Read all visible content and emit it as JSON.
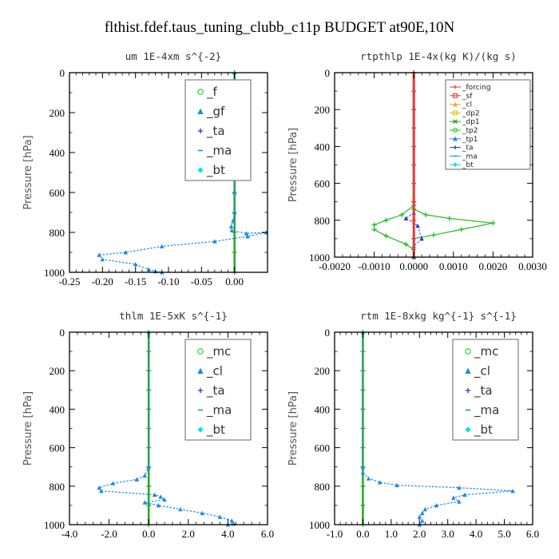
{
  "title": "flthist.fdef.taus_tuning_clubb_c11p  BUDGET at90E,10N",
  "chart_data": [
    {
      "type": "line",
      "title": "um  1E-4xm s^{-2}",
      "ylabel": "Pressure [hPa]",
      "xlim": [
        -0.25,
        0.05
      ],
      "ylim": [
        1000,
        0
      ],
      "xticks": [
        -0.25,
        -0.2,
        -0.15,
        -0.1,
        -0.05,
        0.0
      ],
      "xtick_labels": [
        "-0.25",
        "-0.20",
        "-0.15",
        "-0.10",
        "-0.05",
        "0.00"
      ],
      "yticks": [
        0,
        200,
        400,
        600,
        800,
        1000
      ],
      "legend_style": "large",
      "legend": [
        {
          "label": "_f",
          "color": "#22cc22",
          "marker": "circle"
        },
        {
          "label": "_gf",
          "color": "#1e88e5",
          "marker": "triangle"
        },
        {
          "label": "_ta",
          "color": "#1e3ccf",
          "marker": "plus"
        },
        {
          "label": "_ma",
          "color": "#1e90ff",
          "marker": "dash"
        },
        {
          "label": "_bt",
          "color": "#00e5e5",
          "marker": "diamond"
        }
      ],
      "series": [
        {
          "color": "#22aa22",
          "dashed": false,
          "width": 2.5,
          "points": [
            [
              0.0,
              0
            ],
            [
              0.0,
              100
            ],
            [
              0.0,
              200
            ],
            [
              0.0,
              300
            ],
            [
              0.0,
              400
            ],
            [
              0.0,
              500
            ],
            [
              0.0,
              600
            ],
            [
              0.0,
              700
            ],
            [
              0.0,
              800
            ],
            [
              0.0,
              900
            ],
            [
              0.0,
              1000
            ]
          ]
        },
        {
          "color": "#1e88e5",
          "dashed": true,
          "width": 1.2,
          "points": [
            [
              0.0,
              0
            ],
            [
              0.0,
              60
            ],
            [
              0.001,
              80
            ],
            [
              0.006,
              100
            ],
            [
              0.013,
              110
            ],
            [
              0.018,
              125
            ],
            [
              0.014,
              140
            ],
            [
              0.005,
              155
            ],
            [
              -0.004,
              170
            ],
            [
              -0.006,
              190
            ],
            [
              -0.004,
              210
            ],
            [
              -0.001,
              230
            ],
            [
              0.0,
              260
            ],
            [
              0.0,
              400
            ],
            [
              0.0,
              600
            ],
            [
              0.0,
              700
            ],
            [
              -0.002,
              740
            ],
            [
              -0.005,
              770
            ],
            [
              -0.004,
              790
            ],
            [
              0.018,
              805
            ],
            [
              0.048,
              800
            ],
            [
              0.02,
              820
            ],
            [
              -0.03,
              845
            ],
            [
              -0.11,
              870
            ],
            [
              -0.165,
              900
            ],
            [
              -0.205,
              913
            ],
            [
              -0.2,
              935
            ],
            [
              -0.15,
              960
            ],
            [
              -0.13,
              985
            ],
            [
              -0.12,
              995
            ],
            [
              -0.11,
              1000
            ]
          ]
        }
      ]
    },
    {
      "type": "line",
      "title": "rtpthlp  1E-4x(kg K)/(kg s)",
      "ylabel": "Pressure [hPa]",
      "xlim": [
        -0.002,
        0.003
      ],
      "ylim": [
        1000,
        0
      ],
      "xticks": [
        -0.002,
        -0.001,
        0.0,
        0.001,
        0.002,
        0.003
      ],
      "xtick_labels": [
        "-0.0020",
        "-0.0010",
        "0.0000",
        "0.0010",
        "0.0020",
        "0.0030"
      ],
      "yticks": [
        0,
        200,
        400,
        600,
        800,
        1000
      ],
      "legend_style": "small",
      "legend": [
        {
          "label": "_forcing",
          "color": "#e53935",
          "marker": "plus"
        },
        {
          "label": "_sf",
          "color": "#e53935",
          "marker": "square"
        },
        {
          "label": "_cl",
          "color": "#f5a623",
          "marker": "triangle"
        },
        {
          "label": "_dp2",
          "color": "#e6c000",
          "marker": "square"
        },
        {
          "label": "_dp1",
          "color": "#1fa01f",
          "marker": "cross"
        },
        {
          "label": "_tp2",
          "color": "#22cc22",
          "marker": "circle"
        },
        {
          "label": "_tp1",
          "color": "#1e88e5",
          "marker": "triangle"
        },
        {
          "label": "_ta",
          "color": "#1e3ccf",
          "marker": "plus"
        },
        {
          "label": "_ma",
          "color": "#1e90ff",
          "marker": "dash"
        },
        {
          "label": "_bt",
          "color": "#00e5e5",
          "marker": "diamond"
        }
      ],
      "series": [
        {
          "color": "#22bb22",
          "dashed": false,
          "width": 1.2,
          "points": [
            [
              0.0,
              0
            ],
            [
              0.0,
              700
            ],
            [
              0.0,
              740
            ],
            [
              0.0003,
              770
            ],
            [
              0.0009,
              790
            ],
            [
              0.002,
              815
            ],
            [
              0.0012,
              850
            ],
            [
              0.0005,
              880
            ],
            [
              0.0,
              900
            ],
            [
              0.0,
              1000
            ]
          ]
        },
        {
          "color": "#22bb22",
          "dashed": false,
          "width": 1.2,
          "points": [
            [
              0.0,
              0
            ],
            [
              0.0,
              720
            ],
            [
              -0.0003,
              770
            ],
            [
              -0.0007,
              800
            ],
            [
              -0.001,
              825
            ],
            [
              -0.001,
              850
            ],
            [
              -0.0007,
              885
            ],
            [
              -0.0002,
              930
            ],
            [
              0.0,
              960
            ],
            [
              0.0,
              1000
            ]
          ]
        },
        {
          "color": "#1e3ccf",
          "dashed": true,
          "width": 1.0,
          "points": [
            [
              0.0,
              760
            ],
            [
              -0.0002,
              790
            ],
            [
              0.0001,
              830
            ],
            [
              0.0002,
              900
            ],
            [
              0.0,
              940
            ],
            [
              0.0,
              1000
            ]
          ]
        },
        {
          "color": "#e53935",
          "dashed": false,
          "width": 3.0,
          "points": [
            [
              0.0,
              0
            ],
            [
              0.0,
              100
            ],
            [
              0.0,
              200
            ],
            [
              0.0,
              300
            ],
            [
              0.0,
              400
            ],
            [
              0.0,
              500
            ],
            [
              0.0,
              600
            ],
            [
              0.0,
              700
            ],
            [
              0.0,
              800
            ],
            [
              0.0,
              900
            ],
            [
              0.0,
              1000
            ]
          ]
        }
      ]
    },
    {
      "type": "line",
      "title": "thlm  1E-5xK s^{-1}",
      "ylabel": "Pressure [hPa]",
      "xlim": [
        -4.0,
        6.0
      ],
      "ylim": [
        1000,
        0
      ],
      "xticks": [
        -4.0,
        -2.0,
        0.0,
        2.0,
        4.0,
        6.0
      ],
      "xtick_labels": [
        "-4.0",
        "-2.0",
        "0.0",
        "2.0",
        "4.0",
        "6.0"
      ],
      "yticks": [
        0,
        200,
        400,
        600,
        800,
        1000
      ],
      "legend_style": "large",
      "legend": [
        {
          "label": "_mc",
          "color": "#22cc22",
          "marker": "circle"
        },
        {
          "label": "_cl",
          "color": "#1e88e5",
          "marker": "triangle"
        },
        {
          "label": "_ta",
          "color": "#1e3ccf",
          "marker": "plus"
        },
        {
          "label": "_ma",
          "color": "#1e90ff",
          "marker": "dash"
        },
        {
          "label": "_bt",
          "color": "#00e5e5",
          "marker": "diamond"
        }
      ],
      "series": [
        {
          "color": "#22aa22",
          "dashed": false,
          "width": 2.5,
          "points": [
            [
              0.0,
              0
            ],
            [
              0.0,
              100
            ],
            [
              0.0,
              200
            ],
            [
              0.0,
              300
            ],
            [
              0.0,
              400
            ],
            [
              0.0,
              500
            ],
            [
              0.0,
              600
            ],
            [
              0.0,
              700
            ],
            [
              0.0,
              800
            ],
            [
              0.0,
              900
            ],
            [
              0.0,
              1000
            ]
          ]
        },
        {
          "color": "#1e88e5",
          "dashed": true,
          "width": 1.2,
          "points": [
            [
              0.0,
              0
            ],
            [
              0.0,
              700
            ],
            [
              -0.2,
              745
            ],
            [
              -0.6,
              765
            ],
            [
              -1.8,
              785
            ],
            [
              -2.5,
              808
            ],
            [
              -2.4,
              825
            ],
            [
              0.3,
              845
            ],
            [
              0.6,
              855
            ],
            [
              0.8,
              870
            ],
            [
              -0.2,
              885
            ],
            [
              0.5,
              900
            ],
            [
              1.6,
              920
            ],
            [
              2.7,
              940
            ],
            [
              3.6,
              960
            ],
            [
              4.2,
              980
            ],
            [
              4.3,
              995
            ],
            [
              4.0,
              1000
            ]
          ]
        }
      ]
    },
    {
      "type": "line",
      "title": "rtm  1E-8xkg kg^{-1} s^{-1}",
      "ylabel": "Pressure [hPa]",
      "xlim": [
        -1.0,
        6.0
      ],
      "ylim": [
        1000,
        0
      ],
      "xticks": [
        -1.0,
        0.0,
        1.0,
        2.0,
        3.0,
        4.0,
        5.0,
        6.0
      ],
      "xtick_labels": [
        "-1.0",
        "0.0",
        "1.0",
        "2.0",
        "3.0",
        "4.0",
        "5.0",
        "6.0"
      ],
      "yticks": [
        0,
        200,
        400,
        600,
        800,
        1000
      ],
      "legend_style": "large",
      "legend": [
        {
          "label": "_mc",
          "color": "#22cc22",
          "marker": "circle"
        },
        {
          "label": "_cl",
          "color": "#1e88e5",
          "marker": "triangle"
        },
        {
          "label": "_ta",
          "color": "#1e3ccf",
          "marker": "plus"
        },
        {
          "label": "_ma",
          "color": "#1e90ff",
          "marker": "dash"
        },
        {
          "label": "_bt",
          "color": "#00e5e5",
          "marker": "diamond"
        }
      ],
      "series": [
        {
          "color": "#22aa22",
          "dashed": false,
          "width": 2.5,
          "points": [
            [
              0.0,
              0
            ],
            [
              0.0,
              100
            ],
            [
              0.0,
              200
            ],
            [
              0.0,
              300
            ],
            [
              0.0,
              400
            ],
            [
              0.0,
              500
            ],
            [
              0.0,
              600
            ],
            [
              0.0,
              700
            ],
            [
              0.0,
              800
            ],
            [
              0.0,
              900
            ],
            [
              0.0,
              1000
            ]
          ]
        },
        {
          "color": "#1e88e5",
          "dashed": true,
          "width": 1.2,
          "points": [
            [
              0.0,
              0
            ],
            [
              0.0,
              700
            ],
            [
              0.0,
              730
            ],
            [
              0.2,
              760
            ],
            [
              0.6,
              780
            ],
            [
              1.2,
              795
            ],
            [
              3.4,
              808
            ],
            [
              5.3,
              825
            ],
            [
              3.6,
              845
            ],
            [
              3.2,
              860
            ],
            [
              3.4,
              880
            ],
            [
              2.6,
              900
            ],
            [
              2.2,
              920
            ],
            [
              2.1,
              940
            ],
            [
              2.0,
              960
            ],
            [
              2.1,
              980
            ],
            [
              2.0,
              1000
            ]
          ]
        }
      ]
    }
  ]
}
